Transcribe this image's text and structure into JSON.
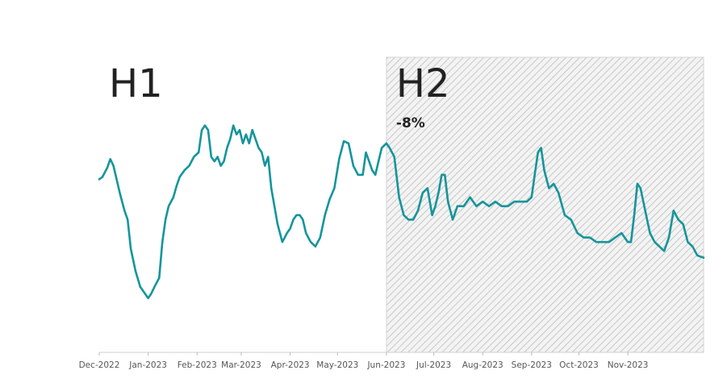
{
  "chart_data": {
    "type": "line",
    "title": "",
    "xlabel": "",
    "ylabel": "",
    "grid": false,
    "legend": "none",
    "line_color": "#14959b",
    "shade_color": "#c8c8c8",
    "y_range": [
      0,
      100
    ],
    "x_range": [
      "2022-12-01",
      "2023-12-19"
    ],
    "x_ticks": [
      "Dec-2022",
      "Jan-2023",
      "Feb-2023",
      "Mar-2023",
      "Apr-2023",
      "May-2023",
      "Jun-2023",
      "Jul-2023",
      "Aug-2023",
      "Sep-2023",
      "Oct-2023",
      "Nov-2023"
    ],
    "regions": [
      {
        "label": "H1",
        "from": "2022-12-01",
        "to": "2023-06-01",
        "shaded": false
      },
      {
        "label": "H2",
        "from": "2023-06-01",
        "to": "2023-12-19",
        "shaded": true,
        "annotation": "-8%"
      }
    ],
    "series": [
      {
        "x": [
          "2022-12-01",
          "2022-12-03",
          "2022-12-06",
          "2022-12-08",
          "2022-12-10",
          "2022-12-12",
          "2022-12-14",
          "2022-12-17",
          "2022-12-19",
          "2022-12-21",
          "2022-12-24",
          "2022-12-27",
          "2022-12-30",
          "2023-01-01",
          "2023-01-03",
          "2023-01-05",
          "2023-01-08",
          "2023-01-10",
          "2023-01-12",
          "2023-01-14",
          "2023-01-17",
          "2023-01-19",
          "2023-01-21",
          "2023-01-24",
          "2023-01-27",
          "2023-01-30",
          "2023-02-02",
          "2023-02-04",
          "2023-02-06",
          "2023-02-08",
          "2023-02-10",
          "2023-02-12",
          "2023-02-14",
          "2023-02-16",
          "2023-02-18",
          "2023-02-20",
          "2023-02-22",
          "2023-02-24",
          "2023-02-26",
          "2023-02-28",
          "2023-03-02",
          "2023-03-04",
          "2023-03-06",
          "2023-03-08",
          "2023-03-10",
          "2023-03-12",
          "2023-03-14",
          "2023-03-16",
          "2023-03-18",
          "2023-03-20",
          "2023-03-22",
          "2023-03-24",
          "2023-03-27",
          "2023-03-30",
          "2023-04-01",
          "2023-04-03",
          "2023-04-05",
          "2023-04-07",
          "2023-04-09",
          "2023-04-11",
          "2023-04-14",
          "2023-04-17",
          "2023-04-20",
          "2023-04-23",
          "2023-04-26",
          "2023-04-29",
          "2023-05-02",
          "2023-05-05",
          "2023-05-08",
          "2023-05-11",
          "2023-05-14",
          "2023-05-17",
          "2023-05-19",
          "2023-05-21",
          "2023-05-23",
          "2023-05-25",
          "2023-05-27",
          "2023-05-29",
          "2023-06-01",
          "2023-06-03",
          "2023-06-06",
          "2023-06-09",
          "2023-06-12",
          "2023-06-15",
          "2023-06-18",
          "2023-06-21",
          "2023-06-24",
          "2023-06-27",
          "2023-06-30",
          "2023-07-02",
          "2023-07-04",
          "2023-07-06",
          "2023-07-08",
          "2023-07-10",
          "2023-07-13",
          "2023-07-16",
          "2023-07-20",
          "2023-07-24",
          "2023-07-28",
          "2023-08-01",
          "2023-08-05",
          "2023-08-09",
          "2023-08-13",
          "2023-08-17",
          "2023-08-21",
          "2023-08-25",
          "2023-08-29",
          "2023-09-01",
          "2023-09-03",
          "2023-09-05",
          "2023-09-07",
          "2023-09-09",
          "2023-09-12",
          "2023-09-15",
          "2023-09-18",
          "2023-09-22",
          "2023-09-26",
          "2023-09-30",
          "2023-10-04",
          "2023-10-08",
          "2023-10-12",
          "2023-10-16",
          "2023-10-20",
          "2023-10-24",
          "2023-10-28",
          "2023-11-01",
          "2023-11-03",
          "2023-11-05",
          "2023-11-07",
          "2023-11-09",
          "2023-11-12",
          "2023-11-15",
          "2023-11-18",
          "2023-11-21",
          "2023-11-24",
          "2023-11-27",
          "2023-11-30",
          "2023-12-03",
          "2023-12-06",
          "2023-12-09",
          "2023-12-12",
          "2023-12-15",
          "2023-12-19"
        ],
        "values": [
          56,
          57,
          61,
          65,
          62,
          56,
          50,
          42,
          38,
          25,
          15,
          8,
          5,
          3,
          5,
          8,
          12,
          28,
          38,
          44,
          48,
          53,
          57,
          60,
          62,
          66,
          68,
          78,
          80,
          78,
          66,
          64,
          66,
          62,
          64,
          70,
          74,
          80,
          76,
          78,
          72,
          76,
          72,
          78,
          74,
          70,
          68,
          62,
          66,
          52,
          44,
          36,
          28,
          32,
          34,
          38,
          40,
          40,
          38,
          32,
          28,
          26,
          30,
          40,
          47,
          52,
          65,
          73,
          72,
          62,
          58,
          58,
          68,
          64,
          60,
          58,
          64,
          70,
          72,
          70,
          66,
          48,
          40,
          38,
          38,
          42,
          50,
          52,
          40,
          44,
          50,
          58,
          58,
          46,
          38,
          44,
          44,
          48,
          44,
          46,
          44,
          46,
          44,
          44,
          46,
          46,
          46,
          48,
          58,
          68,
          70,
          60,
          52,
          54,
          50,
          40,
          38,
          32,
          30,
          30,
          28,
          28,
          28,
          30,
          32,
          28,
          28,
          40,
          54,
          52,
          42,
          32,
          28,
          26,
          24,
          30,
          42,
          38,
          36,
          28,
          26,
          22,
          21
        ]
      }
    ]
  }
}
